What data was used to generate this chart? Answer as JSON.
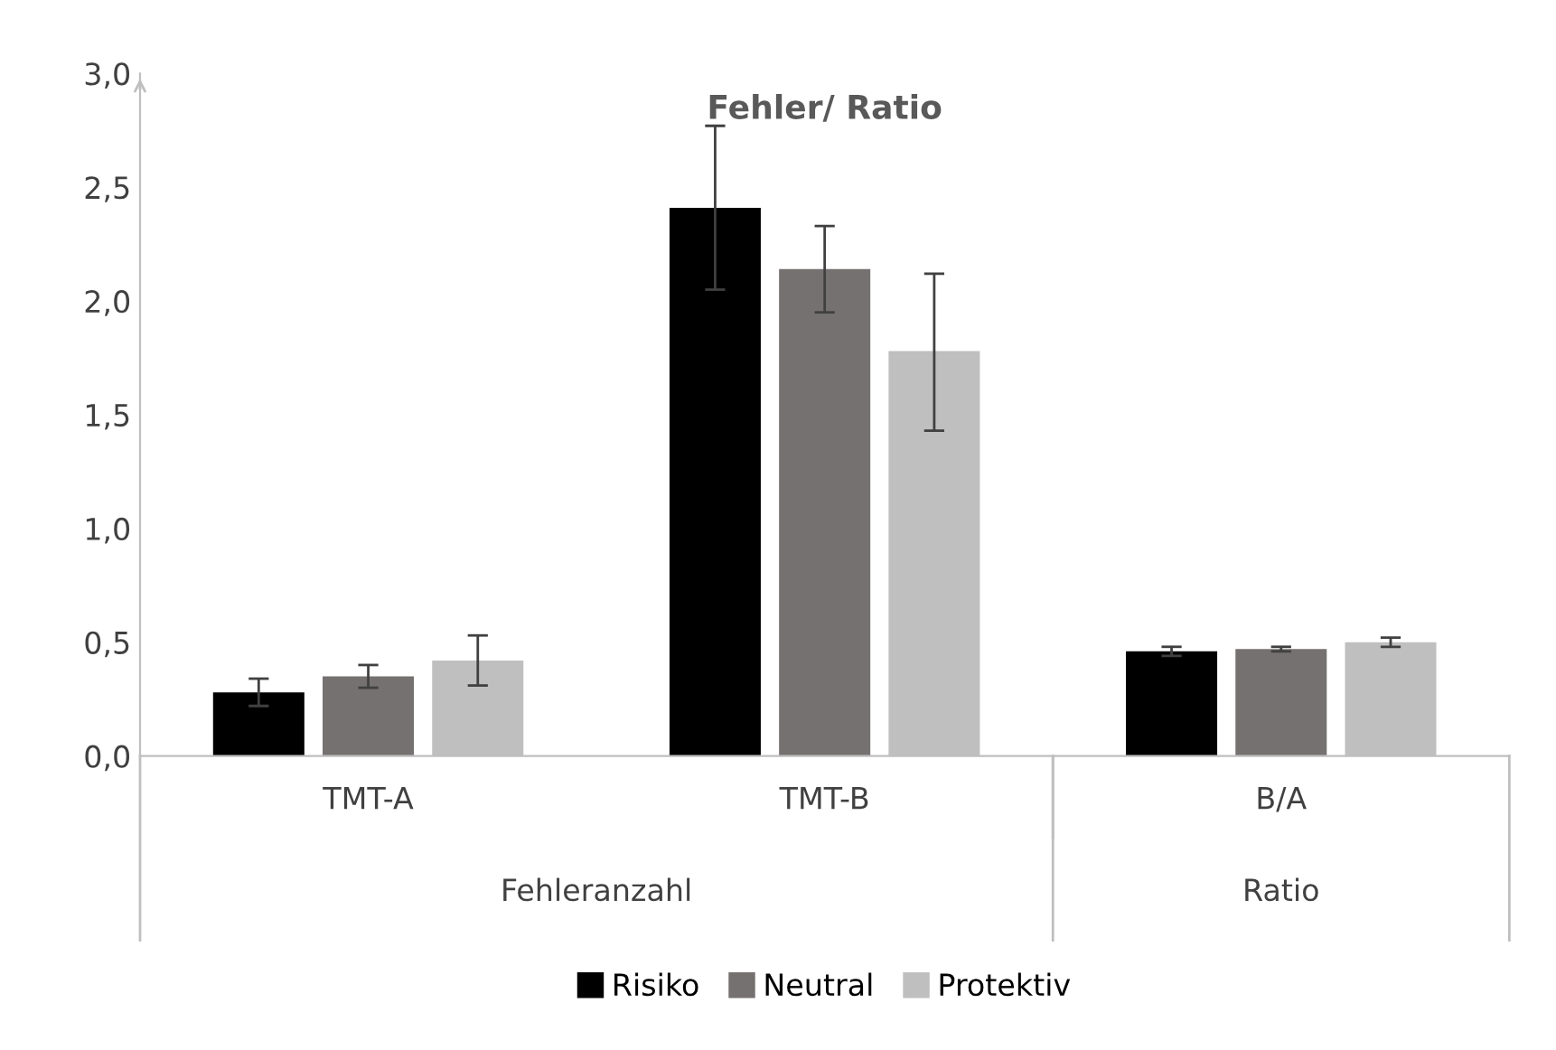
{
  "chart_data": {
    "type": "bar",
    "title": "Fehler/ Ratio",
    "categories": [
      "TMT-A",
      "TMT-B",
      "B/A"
    ],
    "series": [
      {
        "name": "Risiko",
        "color": "#000000",
        "values": [
          0.28,
          2.41,
          0.46
        ],
        "errors": [
          [
            0.22,
            0.34
          ],
          [
            2.05,
            2.77
          ],
          [
            0.44,
            0.48
          ]
        ]
      },
      {
        "name": "Neutral",
        "color": "#767171",
        "values": [
          0.35,
          2.14,
          0.47
        ],
        "errors": [
          [
            0.3,
            0.4
          ],
          [
            1.95,
            2.33
          ],
          [
            0.46,
            0.48
          ]
        ]
      },
      {
        "name": "Protektiv",
        "color": "#bfbfbf",
        "values": [
          0.42,
          1.78,
          0.5
        ],
        "errors": [
          [
            0.31,
            0.53
          ],
          [
            1.43,
            2.12
          ],
          [
            0.48,
            0.52
          ]
        ]
      }
    ],
    "annotations": [
      "Fehleranzahl",
      "Ratio"
    ],
    "ylim": [
      0,
      3
    ],
    "yticks": [
      {
        "value": 0,
        "label": "0,0"
      },
      {
        "value": 0.5,
        "label": "0,5"
      },
      {
        "value": 1,
        "label": "1,0"
      },
      {
        "value": 1.5,
        "label": "1,5"
      },
      {
        "value": 2,
        "label": "2,0"
      },
      {
        "value": 2.5,
        "label": "2,5"
      },
      {
        "value": 3,
        "label": "3,0"
      }
    ],
    "grid": false,
    "legend": "bottom"
  }
}
